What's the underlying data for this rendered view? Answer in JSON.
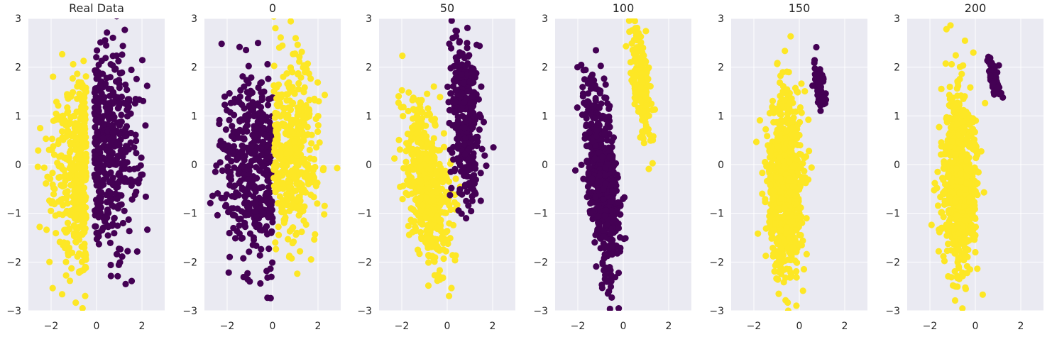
{
  "colors": {
    "class0": "#440154",
    "class1": "#fde725",
    "panel_bg": "#eaeaf2",
    "grid": "#ffffff",
    "text": "#262626"
  },
  "chart_data": [
    {
      "type": "scatter",
      "title": "Real Data",
      "xlim": [
        -3,
        3
      ],
      "ylim": [
        -3,
        3
      ],
      "xticks": [
        -2,
        0,
        2
      ],
      "yticks": [
        -3,
        -2,
        -1,
        0,
        1,
        2,
        3
      ],
      "grid": true,
      "clusters": [
        {
          "class": 1,
          "cx": -0.8,
          "cy": -0.2,
          "sx": 0.65,
          "sy": 1.0,
          "rho": 0.0,
          "n": 420,
          "xmax_rel": 0.35
        },
        {
          "class": 0,
          "cx": 0.6,
          "cy": 0.3,
          "sx": 0.65,
          "sy": 1.0,
          "rho": 0.0,
          "n": 420,
          "xmin_rel": -0.7
        }
      ]
    },
    {
      "type": "scatter",
      "title": "0",
      "xlim": [
        -3,
        3
      ],
      "ylim": [
        -3,
        3
      ],
      "xticks": [
        -2,
        0,
        2
      ],
      "yticks": [
        -3,
        -2,
        -1,
        0,
        1,
        2,
        3
      ],
      "grid": true,
      "clusters": [
        {
          "class": 0,
          "cx": -0.9,
          "cy": 0.0,
          "sx": 0.7,
          "sy": 1.0,
          "rho": 0.0,
          "n": 420,
          "xmax_rel": 0.9
        },
        {
          "class": 1,
          "cx": 0.9,
          "cy": 0.3,
          "sx": 0.6,
          "sy": 1.0,
          "rho": 0.0,
          "n": 420,
          "xmin_rel": -0.85
        }
      ]
    },
    {
      "type": "scatter",
      "title": "50",
      "xlim": [
        -3,
        3
      ],
      "ylim": [
        -3,
        3
      ],
      "xticks": [
        -2,
        0,
        2
      ],
      "yticks": [
        -3,
        -2,
        -1,
        0,
        1,
        2,
        3
      ],
      "grid": true,
      "clusters": [
        {
          "class": 1,
          "cx": -0.9,
          "cy": -0.4,
          "sx": 0.5,
          "sy": 0.85,
          "rho": -0.45,
          "n": 520
        },
        {
          "class": 0,
          "cx": 0.8,
          "cy": 1.0,
          "sx": 0.35,
          "sy": 0.9,
          "rho": -0.2,
          "n": 320
        }
      ]
    },
    {
      "type": "scatter",
      "title": "100",
      "xlim": [
        -3,
        3
      ],
      "ylim": [
        -3,
        3
      ],
      "xticks": [
        -2,
        0,
        2
      ],
      "yticks": [
        -3,
        -2,
        -1,
        0,
        1,
        2,
        3
      ],
      "grid": true,
      "clusters": [
        {
          "class": 0,
          "cx": -0.9,
          "cy": -0.3,
          "sx": 0.38,
          "sy": 1.0,
          "rho": -0.55,
          "n": 620
        },
        {
          "class": 1,
          "cx": 0.8,
          "cy": 1.6,
          "sx": 0.25,
          "sy": 0.65,
          "rho": -0.6,
          "n": 220
        }
      ]
    },
    {
      "type": "scatter",
      "title": "150",
      "xlim": [
        -3,
        3
      ],
      "ylim": [
        -3,
        3
      ],
      "xticks": [
        -2,
        0,
        2
      ],
      "yticks": [
        -3,
        -2,
        -1,
        0,
        1,
        2,
        3
      ],
      "grid": true,
      "clusters": [
        {
          "class": 1,
          "cx": -0.6,
          "cy": -0.4,
          "sx": 0.38,
          "sy": 0.95,
          "rho": -0.1,
          "n": 760
        },
        {
          "class": 0,
          "cx": 0.9,
          "cy": 1.6,
          "sx": 0.12,
          "sy": 0.25,
          "rho": -0.6,
          "n": 90
        }
      ]
    },
    {
      "type": "scatter",
      "title": "200",
      "xlim": [
        -3,
        3
      ],
      "ylim": [
        -3,
        3
      ],
      "xticks": [
        -2,
        0,
        2
      ],
      "yticks": [
        -3,
        -2,
        -1,
        0,
        1,
        2,
        3
      ],
      "grid": true,
      "clusters": [
        {
          "class": 1,
          "cx": -0.7,
          "cy": -0.4,
          "sx": 0.38,
          "sy": 0.9,
          "rho": -0.1,
          "n": 780
        },
        {
          "class": 0,
          "cx": 0.85,
          "cy": 1.75,
          "sx": 0.12,
          "sy": 0.18,
          "rho": -0.6,
          "n": 90
        }
      ]
    }
  ]
}
